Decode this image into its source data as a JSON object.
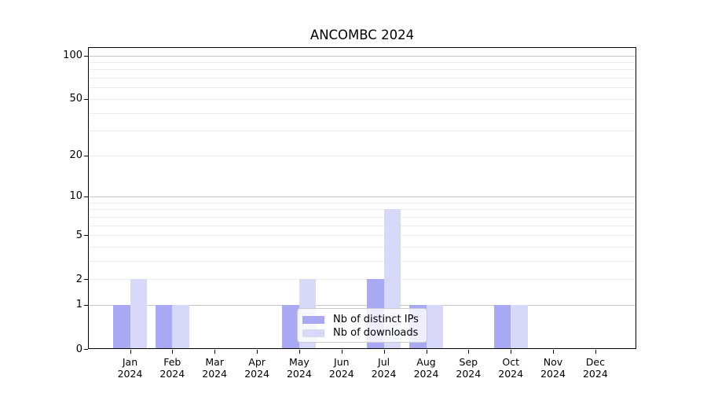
{
  "chart_data": {
    "type": "bar",
    "title": "ANCOMBC 2024",
    "categories": [
      "Jan",
      "Feb",
      "Mar",
      "Apr",
      "May",
      "Jun",
      "Jul",
      "Aug",
      "Sep",
      "Oct",
      "Nov",
      "Dec"
    ],
    "category_year": "2024",
    "series": [
      {
        "name": "Nb of distinct IPs",
        "color": "#a8a8f3",
        "values": [
          1,
          1,
          0,
          0,
          1,
          0,
          2,
          1,
          0,
          1,
          0,
          0
        ]
      },
      {
        "name": "Nb of downloads",
        "color": "#d8d8f8",
        "values": [
          2,
          1,
          0,
          0,
          2,
          0,
          8,
          1,
          0,
          1,
          0,
          0
        ]
      }
    ],
    "y_axis": {
      "scale": "log1p",
      "tick_labels": [
        0,
        1,
        2,
        5,
        10,
        20,
        50,
        100
      ],
      "major_gridlines": [
        1,
        10,
        100
      ],
      "minor_gridlines": [
        2,
        3,
        4,
        5,
        6,
        7,
        8,
        9,
        20,
        30,
        40,
        50,
        60,
        70,
        80,
        90
      ],
      "max_tick": 100
    },
    "xlabel": "",
    "ylabel": "",
    "legend": {
      "position": "inside-bottom-center"
    },
    "colors": {
      "major_grid": "#c6c6c6",
      "minor_grid": "#ececec",
      "axis": "#000000",
      "text": "#000000",
      "background": "#ffffff"
    }
  }
}
